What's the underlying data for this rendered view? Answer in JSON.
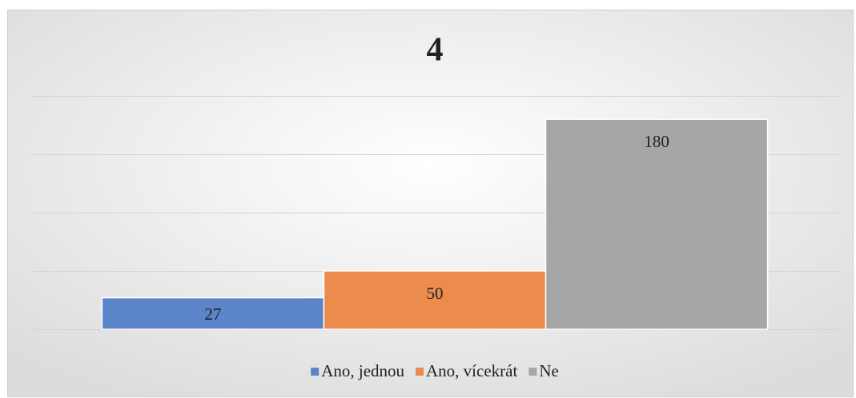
{
  "chart_data": {
    "type": "bar",
    "title": "4",
    "series": [
      {
        "name": "Ano, jednou",
        "color": "#5b84c9",
        "values": [
          27
        ]
      },
      {
        "name": "Ano, vícekrát",
        "color": "#ec8c4c",
        "values": [
          50
        ]
      },
      {
        "name": "Ne",
        "color": "#a6a6a6",
        "values": [
          180
        ]
      }
    ],
    "ylim": [
      0,
      200
    ],
    "yticks": [
      0,
      50,
      100,
      150,
      200
    ],
    "grid": true,
    "legend": "bottom"
  }
}
